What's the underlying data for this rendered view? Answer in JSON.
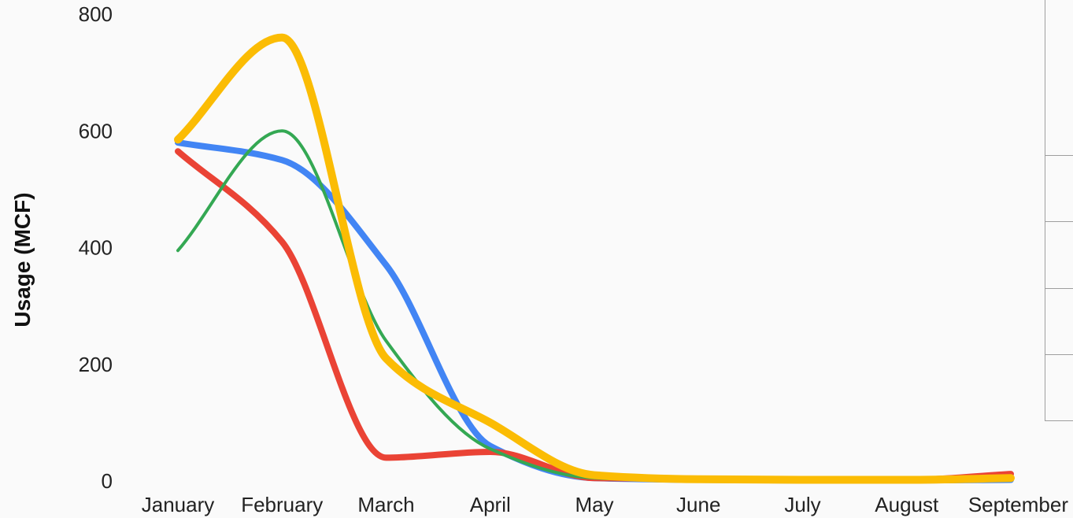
{
  "chart_data": {
    "type": "line",
    "title": "",
    "xlabel": "",
    "ylabel": "Usage (MCF)",
    "ylim": [
      0,
      800
    ],
    "yticks": [
      "0",
      "200",
      "400",
      "600",
      "800"
    ],
    "categories": [
      "January",
      "February",
      "March",
      "April",
      "May",
      "June",
      "July",
      "August",
      "September"
    ],
    "grid": false,
    "legend": "right (panel partially cut off)",
    "series": [
      {
        "color": "#4285f4",
        "values": [
          580,
          550,
          370,
          60,
          5,
          2,
          1,
          1,
          2
        ]
      },
      {
        "color": "#ea4335",
        "values": [
          565,
          410,
          40,
          50,
          5,
          4,
          2,
          2,
          12
        ]
      },
      {
        "color": "#34a853",
        "values": [
          395,
          600,
          240,
          55,
          5,
          1,
          1,
          1,
          1
        ]
      },
      {
        "color": "#fbbc04",
        "values": [
          585,
          760,
          210,
          100,
          10,
          3,
          2,
          2,
          5
        ]
      }
    ]
  }
}
